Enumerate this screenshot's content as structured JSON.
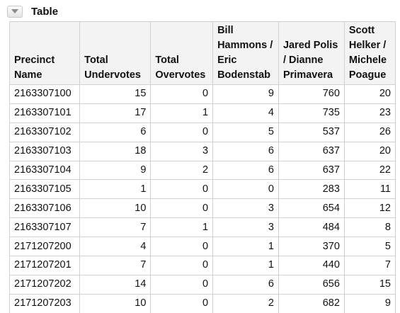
{
  "panel": {
    "title": "Table"
  },
  "table": {
    "headers": [
      "Precinct Name",
      "Total Undervotes",
      "Total Overvotes",
      "Bill Hammons / Eric Bodenstab",
      "Jared Polis / Dianne Primavera",
      "Scott Helker / Michele Poague"
    ],
    "rows": [
      [
        "2163307100",
        "15",
        "0",
        "9",
        "760",
        "20"
      ],
      [
        "2163307101",
        "17",
        "1",
        "4",
        "735",
        "23"
      ],
      [
        "2163307102",
        "6",
        "0",
        "5",
        "537",
        "26"
      ],
      [
        "2163307103",
        "18",
        "3",
        "6",
        "637",
        "20"
      ],
      [
        "2163307104",
        "9",
        "2",
        "6",
        "637",
        "22"
      ],
      [
        "2163307105",
        "1",
        "0",
        "0",
        "283",
        "11"
      ],
      [
        "2163307106",
        "10",
        "0",
        "3",
        "654",
        "12"
      ],
      [
        "2163307107",
        "7",
        "1",
        "3",
        "484",
        "8"
      ],
      [
        "2171207200",
        "4",
        "0",
        "1",
        "370",
        "5"
      ],
      [
        "2171207201",
        "7",
        "0",
        "1",
        "440",
        "7"
      ],
      [
        "2171207202",
        "14",
        "0",
        "6",
        "656",
        "15"
      ],
      [
        "2171207203",
        "10",
        "0",
        "2",
        "682",
        "9"
      ]
    ]
  }
}
